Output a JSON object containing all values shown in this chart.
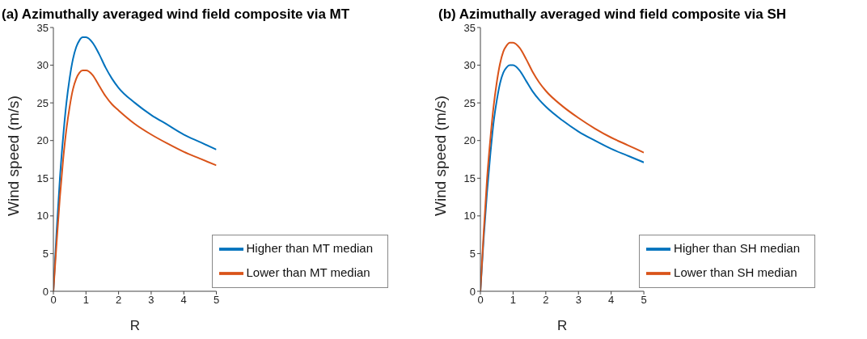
{
  "chart_data": [
    {
      "type": "line",
      "title": "(a) Azimuthally averaged wind field composite via MT",
      "xlabel": "R",
      "ylabel": "Wind speed (m/s)",
      "x": [
        0,
        0.1,
        0.2,
        0.3,
        0.4,
        0.5,
        0.6,
        0.7,
        0.8,
        0.9,
        1,
        1.2,
        1.4,
        1.6,
        1.8,
        2,
        2.5,
        3,
        3.5,
        4,
        4.5,
        5
      ],
      "series": [
        {
          "name": "Higher than MT median",
          "color": "#0072bd",
          "values": [
            0,
            8,
            15,
            20.5,
            25,
            28.3,
            30.8,
            32.4,
            33.3,
            33.7,
            33.7,
            33,
            31.5,
            29.7,
            28.2,
            27,
            25,
            23.4,
            22.1,
            20.8,
            19.8,
            18.8
          ]
        },
        {
          "name": "Lower than MT median",
          "color": "#d95319",
          "values": [
            0,
            6.5,
            12.5,
            17.5,
            21.5,
            24.5,
            26.8,
            28.2,
            29,
            29.3,
            29.3,
            28.7,
            27.3,
            25.9,
            24.8,
            24,
            22.2,
            20.8,
            19.6,
            18.5,
            17.6,
            16.7
          ]
        }
      ],
      "xlim": [
        0,
        5
      ],
      "xticks": [
        0,
        1,
        2,
        3,
        4,
        5
      ],
      "ylim": [
        0,
        35
      ],
      "yticks": [
        0,
        5,
        10,
        15,
        20,
        25,
        30,
        35
      ],
      "grid": false,
      "legend": "bottom right",
      "marker": "none",
      "line_style": "solid"
    },
    {
      "type": "line",
      "title": "(b) Azimuthally averaged wind field composite via SH",
      "xlabel": "R",
      "ylabel": "Wind speed (m/s)",
      "x": [
        0,
        0.1,
        0.2,
        0.3,
        0.4,
        0.5,
        0.6,
        0.7,
        0.8,
        0.9,
        1,
        1.2,
        1.4,
        1.6,
        1.8,
        2,
        2.5,
        3,
        3.5,
        4,
        4.5,
        5
      ],
      "series": [
        {
          "name": "Higher than SH median",
          "color": "#0072bd",
          "values": [
            0,
            7,
            13,
            18,
            22.3,
            25.3,
            27.6,
            29,
            29.7,
            30,
            30,
            29.3,
            27.9,
            26.5,
            25.4,
            24.5,
            22.7,
            21.2,
            20,
            18.9,
            18,
            17.1
          ]
        },
        {
          "name": "Lower than SH median",
          "color": "#d95319",
          "values": [
            0,
            7.8,
            14.7,
            20,
            24.4,
            27.7,
            30.2,
            31.8,
            32.6,
            33,
            33,
            32.3,
            30.8,
            29.1,
            27.7,
            26.6,
            24.6,
            23,
            21.6,
            20.4,
            19.4,
            18.4
          ]
        }
      ],
      "xlim": [
        0,
        5
      ],
      "xticks": [
        0,
        1,
        2,
        3,
        4,
        5
      ],
      "ylim": [
        0,
        35
      ],
      "yticks": [
        0,
        5,
        10,
        15,
        20,
        25,
        30,
        35
      ],
      "grid": false,
      "legend": "bottom right",
      "marker": "none",
      "line_style": "solid"
    }
  ]
}
